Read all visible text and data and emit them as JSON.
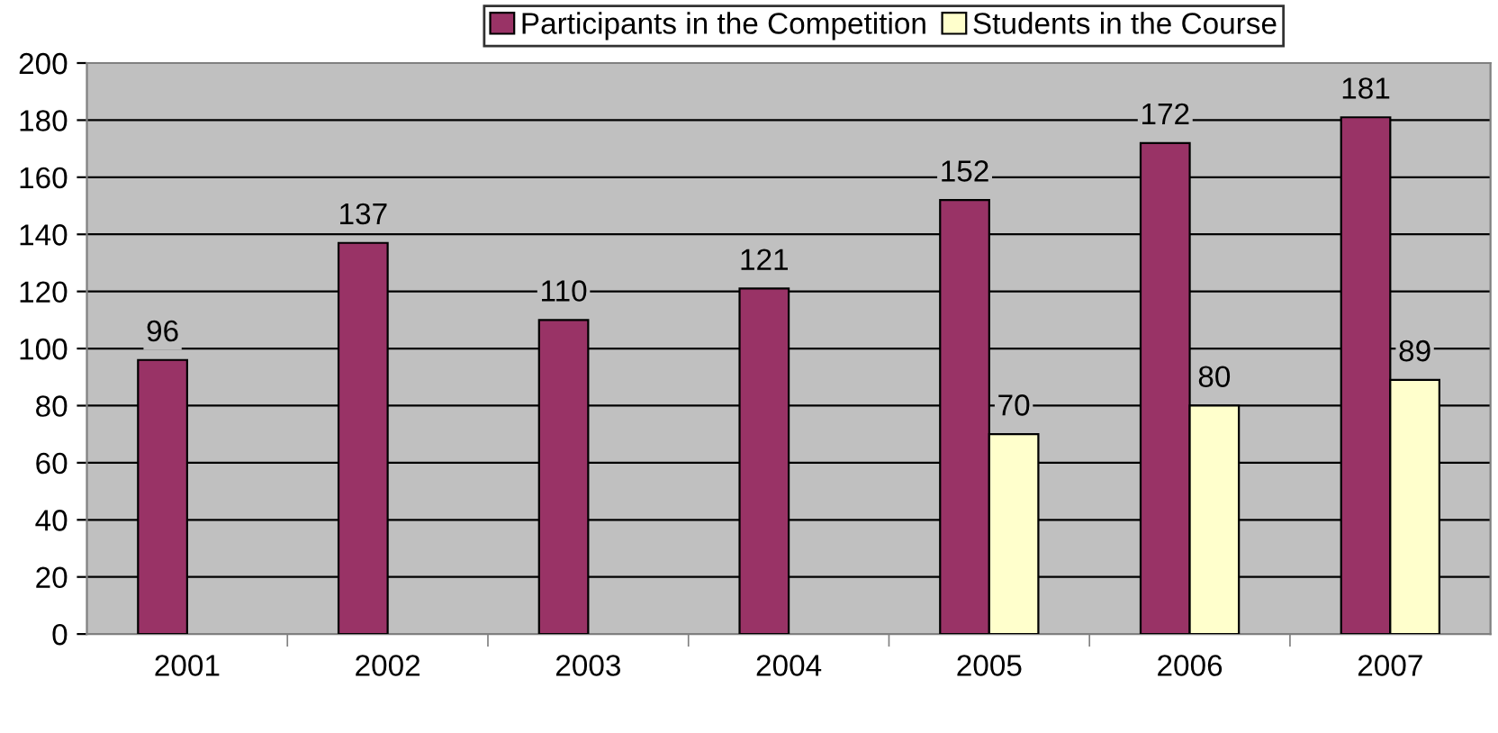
{
  "chart_data": {
    "type": "bar",
    "categories": [
      "2001",
      "2002",
      "2003",
      "2004",
      "2005",
      "2006",
      "2007"
    ],
    "series": [
      {
        "name": "Participants in the Competition",
        "color": "#993366",
        "values": [
          96,
          137,
          110,
          121,
          152,
          172,
          181
        ]
      },
      {
        "name": "Students in the Course",
        "color": "#ffffcc",
        "values": [
          null,
          null,
          null,
          null,
          70,
          80,
          89
        ]
      }
    ],
    "ylim": [
      0,
      200
    ],
    "yticks": [
      0,
      20,
      40,
      60,
      80,
      100,
      120,
      140,
      160,
      180,
      200
    ],
    "grid": "y",
    "legend": "top",
    "data_labels": true
  }
}
